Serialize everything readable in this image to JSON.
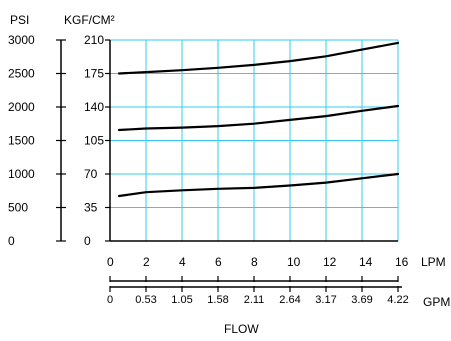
{
  "chart_data": {
    "type": "line",
    "title": "",
    "xlabel": "FLOW",
    "x_units": {
      "primary": "LPM",
      "secondary": "GPM"
    },
    "y_units": {
      "primary": "PSI",
      "secondary": "KGF/CM²"
    },
    "x_ticks_lpm": [
      "0",
      "2",
      "4",
      "6",
      "8",
      "10",
      "12",
      "14",
      "16"
    ],
    "x_ticks_gpm": [
      "0",
      "0.53",
      "1.05",
      "1.58",
      "2.11",
      "2.64",
      "3.17",
      "3.69",
      "4.22"
    ],
    "y_ticks_psi": [
      "0",
      "500",
      "1000",
      "1500",
      "2000",
      "2500",
      "3000"
    ],
    "y_ticks_kgf": [
      "0",
      "35",
      "70",
      "105",
      "140",
      "175",
      "210"
    ],
    "xlim": [
      0,
      16
    ],
    "ylim_kgf": [
      0,
      210
    ],
    "ylim_psi": [
      0,
      3000
    ],
    "grid": true,
    "grid_color": "#33ccee",
    "line_color": "#000000",
    "series": [
      {
        "x": [
          0.5,
          2,
          4,
          6,
          8,
          10,
          12,
          14,
          16
        ],
        "values": [
          175,
          176.5,
          178.5,
          181,
          184,
          188,
          193,
          200,
          207
        ]
      },
      {
        "x": [
          0.5,
          2,
          4,
          6,
          8,
          10,
          12,
          14,
          16
        ],
        "values": [
          116,
          117.5,
          118.5,
          120,
          122.5,
          126.5,
          130.5,
          136,
          141
        ]
      },
      {
        "x": [
          0.5,
          2,
          4,
          6,
          8,
          10,
          12,
          14,
          16
        ],
        "values": [
          47,
          51,
          53,
          54.5,
          55.5,
          58,
          61,
          65.5,
          70
        ]
      }
    ]
  }
}
